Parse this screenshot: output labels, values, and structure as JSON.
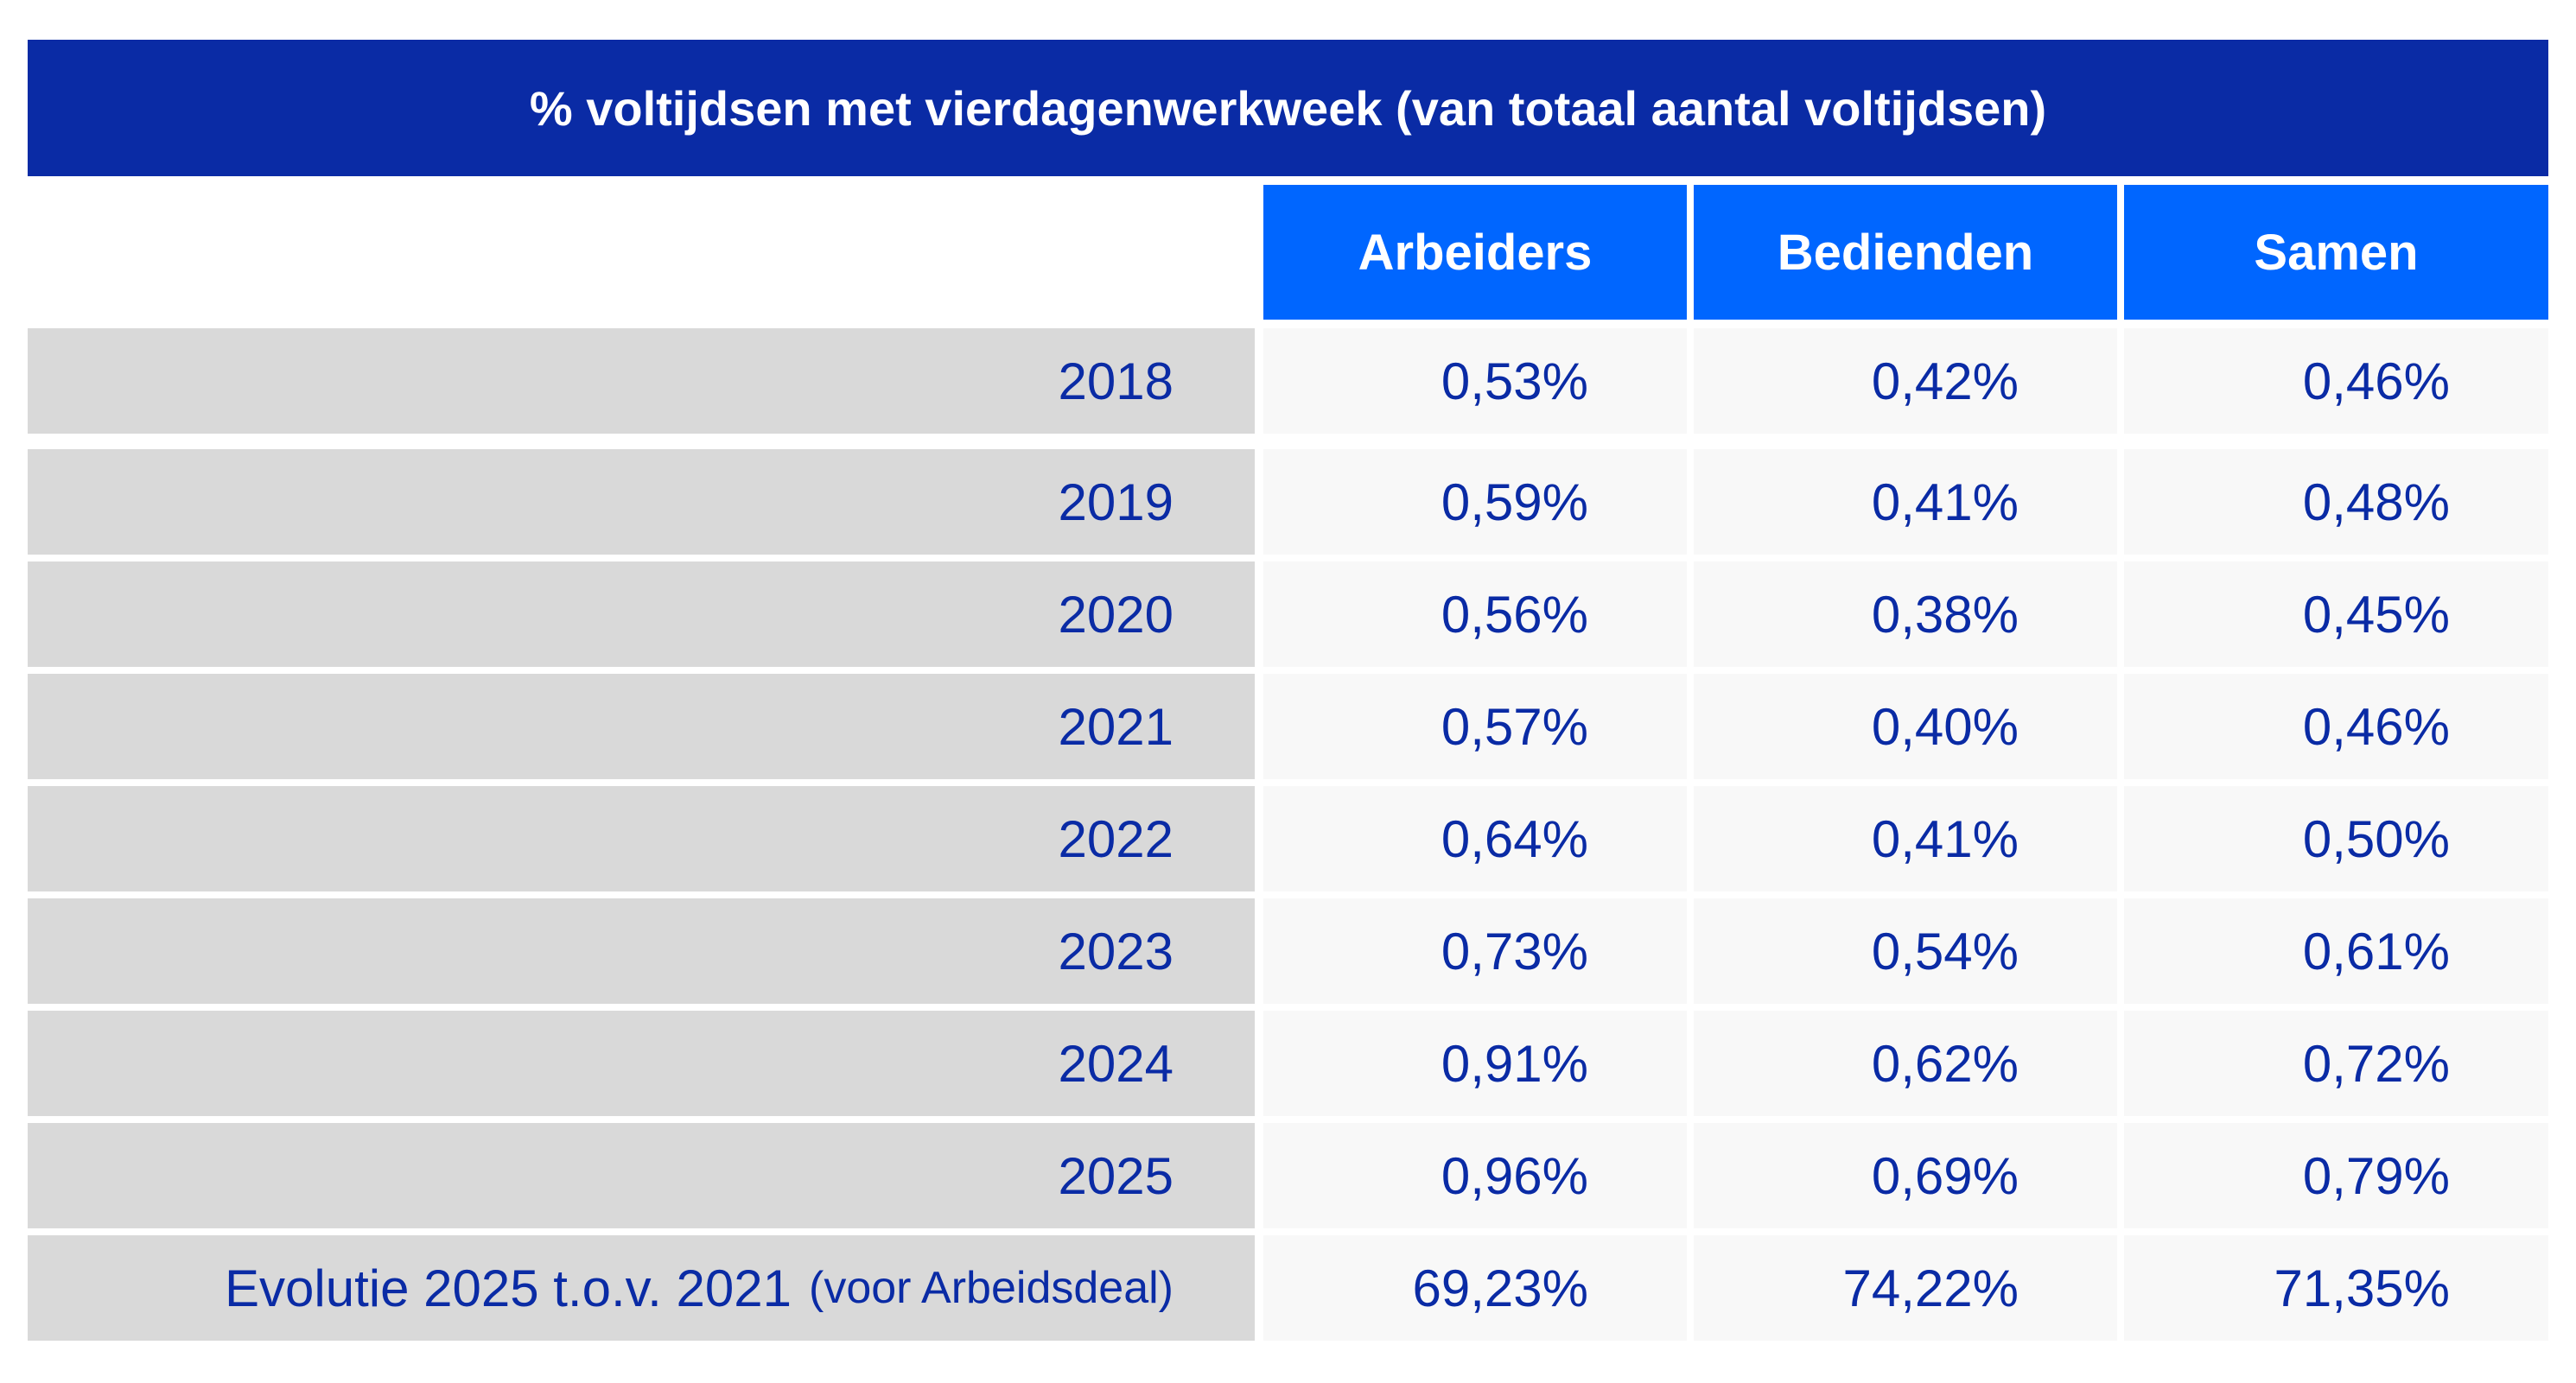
{
  "chart_data": {
    "type": "table",
    "title": "% voltijdsen met vierdagenwerkweek (van totaal aantal voltijdsen)",
    "columns": [
      "Arbeiders",
      "Bedienden",
      "Samen"
    ],
    "rows": [
      {
        "label": "2018",
        "note": "",
        "values": [
          "0,53%",
          "0,42%",
          "0,46%"
        ]
      },
      {
        "label": "2019",
        "note": "",
        "values": [
          "0,59%",
          "0,41%",
          "0,48%"
        ]
      },
      {
        "label": "2020",
        "note": "",
        "values": [
          "0,56%",
          "0,38%",
          "0,45%"
        ]
      },
      {
        "label": "2021",
        "note": "",
        "values": [
          "0,57%",
          "0,40%",
          "0,46%"
        ]
      },
      {
        "label": "2022",
        "note": "",
        "values": [
          "0,64%",
          "0,41%",
          "0,50%"
        ]
      },
      {
        "label": "2023",
        "note": "",
        "values": [
          "0,73%",
          "0,54%",
          "0,61%"
        ]
      },
      {
        "label": "2024",
        "note": "",
        "values": [
          "0,91%",
          "0,62%",
          "0,72%"
        ]
      },
      {
        "label": "2025",
        "note": "",
        "values": [
          "0,96%",
          "0,69%",
          "0,79%"
        ]
      },
      {
        "label": "Evolutie 2025 t.o.v. 2021",
        "note": "(voor Arbeidsdeal)",
        "values": [
          "69,23%",
          "74,22%",
          "71,35%"
        ]
      }
    ]
  },
  "colors": {
    "title_background": "#0a2ba5",
    "header_background": "#0066ff",
    "label_background": "#d9d9d9",
    "cell_background": "#f8f8f8",
    "text": "#0a2ba5"
  }
}
